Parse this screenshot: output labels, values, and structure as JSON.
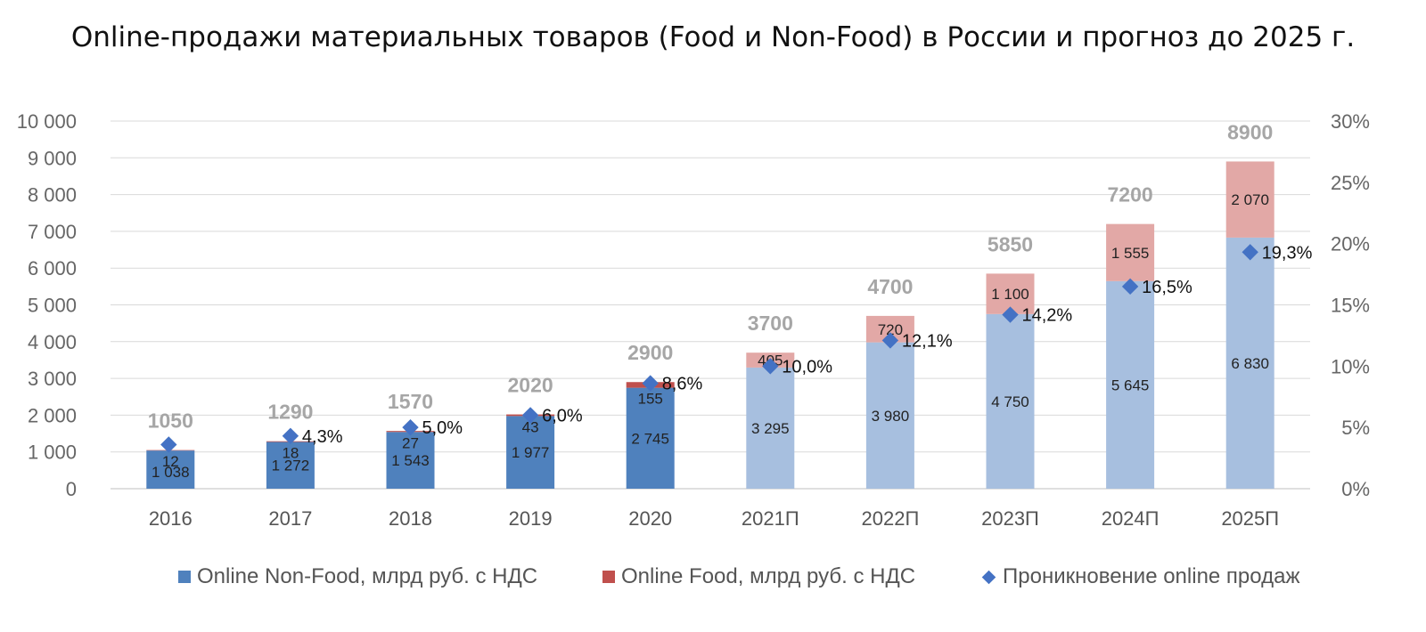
{
  "chart_data": {
    "type": "bar",
    "title": "Online-продажи материальных товаров (Food и Non-Food) в России и прогноз до 2025 г.",
    "categories": [
      "2016",
      "2017",
      "2018",
      "2019",
      "2020",
      "2021П",
      "2022П",
      "2023П",
      "2024П",
      "2025П"
    ],
    "stacked": true,
    "series": [
      {
        "name": "Online Non-Food, млрд руб. с НДС",
        "values": [
          1038,
          1272,
          1543,
          1977,
          2745,
          3295,
          3980,
          4750,
          5645,
          6830
        ],
        "labels": [
          "1 038",
          "1 272",
          "1 543",
          "1 977",
          "2 745",
          "3 295",
          "3 980",
          "4 750",
          "5 645",
          "6 830"
        ],
        "color": "#4f81bd",
        "forecast_color": "#a7bfdf"
      },
      {
        "name": "Online Food, млрд руб. с НДС",
        "values": [
          12,
          18,
          27,
          43,
          155,
          405,
          720,
          1100,
          1555,
          2070
        ],
        "labels": [
          "12",
          "18",
          "27",
          "43",
          "155",
          "405",
          "720",
          "1 100",
          "1 555",
          "2 070"
        ],
        "color": "#c0504d",
        "forecast_color": "#e2a8a6"
      }
    ],
    "totals": [
      "1050",
      "1290",
      "1570",
      "2020",
      "2900",
      "3700",
      "4700",
      "5850",
      "7200",
      "8900"
    ],
    "line_series": {
      "name": "Проникновение online продаж",
      "axis": "right",
      "values": [
        3.6,
        4.3,
        5.0,
        6.0,
        8.6,
        10.0,
        12.1,
        14.2,
        16.5,
        19.3
      ],
      "labels": [
        "",
        "4,3%",
        "5,0%",
        "6,0%",
        "8,6%",
        "10,0%",
        "12,1%",
        "14,2%",
        "16,5%",
        "19,3%"
      ],
      "color": "#4472c4"
    },
    "ylim": [
      0,
      10000
    ],
    "y_ticks": [
      "0",
      "1 000",
      "2 000",
      "3 000",
      "4 000",
      "5 000",
      "6 000",
      "7 000",
      "8 000",
      "9 000",
      "10 000"
    ],
    "y2lim": [
      0,
      30
    ],
    "y2_ticks": [
      "0%",
      "5%",
      "10%",
      "15%",
      "20%",
      "25%",
      "30%"
    ],
    "forecast_from_index": 5,
    "grid": true,
    "legend_position": "bottom"
  }
}
